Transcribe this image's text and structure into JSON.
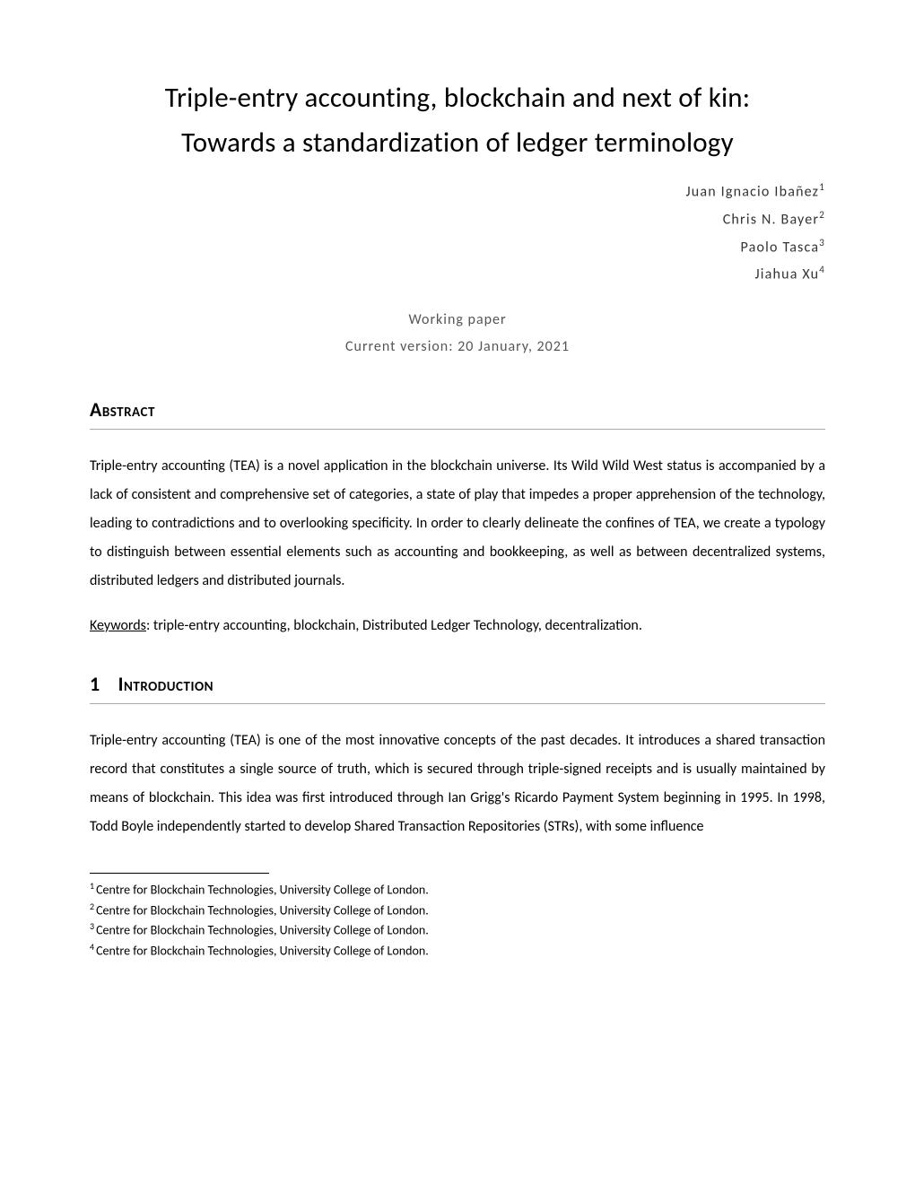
{
  "title_line1": "Triple-entry accounting, blockchain and next of kin:",
  "title_line2": "Towards a standardization of ledger terminology",
  "authors": [
    {
      "name": "Juan Ignacio Ibañez",
      "sup": "1"
    },
    {
      "name": "Chris N. Bayer",
      "sup": "2"
    },
    {
      "name": "Paolo Tasca",
      "sup": "3"
    },
    {
      "name": "Jiahua Xu",
      "sup": "4"
    }
  ],
  "paper_type": "Working paper",
  "version": "Current version: 20 January, 2021",
  "abstract_heading": "Abstract",
  "abstract_text": "Triple-entry accounting (TEA) is a novel application in the blockchain universe. Its Wild Wild West status is accompanied by a lack of consistent and comprehensive set of categories, a state of play that impedes a proper apprehension of the technology, leading to contradictions and to overlooking specificity. In order to clearly delineate the confines of TEA, we create a typology to distinguish between essential elements such as accounting and bookkeeping, as well as between decentralized systems, distributed ledgers and distributed journals.",
  "keywords_label": "Keywords",
  "keywords_text": ": triple-entry accounting, blockchain, Distributed Ledger Technology, decentralization.",
  "intro_num": "1",
  "intro_heading": "Introduction",
  "intro_text": "Triple-entry accounting (TEA) is one of the most innovative concepts of the past decades. It introduces a shared transaction record that constitutes a single source of truth, which is secured through triple-signed receipts and is usually maintained by means of blockchain. This idea was first introduced through Ian Grigg's Ricardo Payment System beginning in 1995. In 1998, Todd Boyle independently started to develop Shared Transaction Repositories (STRs), with some influence",
  "footnotes": [
    {
      "sup": "1",
      "text": "Centre for Blockchain Technologies, University College of London."
    },
    {
      "sup": "2",
      "text": "Centre for Blockchain Technologies, University College of London."
    },
    {
      "sup": "3",
      "text": "Centre for Blockchain Technologies, University College of London."
    },
    {
      "sup": "4",
      "text": "Centre for Blockchain Technologies, University College of London."
    }
  ]
}
